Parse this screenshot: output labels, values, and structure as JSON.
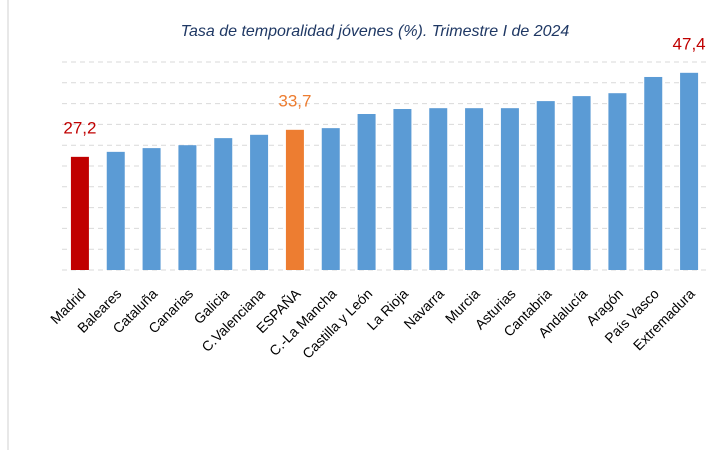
{
  "chart_data": {
    "type": "bar",
    "title": "Tasa de temporalidad jóvenes (%). Trimestre I de 2024",
    "categories": [
      "Madrid",
      "Baleares",
      "Cataluña",
      "Canarias",
      "Galicia",
      "C.Valenciana",
      "ESPAÑA",
      "C.-La Mancha",
      "Castilla y León",
      "La Rioja",
      "Navarra",
      "Murcia",
      "Asturias",
      "Cantabria",
      "Andalucía",
      "Aragón",
      "País Vasco",
      "Extremadura"
    ],
    "values": [
      27.2,
      28.4,
      29.3,
      30.0,
      31.7,
      32.5,
      33.7,
      34.1,
      37.5,
      38.7,
      38.9,
      38.9,
      38.9,
      40.6,
      41.8,
      42.5,
      46.4,
      47.4
    ],
    "value_labels": [
      "27,2",
      null,
      null,
      null,
      null,
      null,
      "33,7",
      null,
      null,
      null,
      null,
      null,
      null,
      null,
      null,
      null,
      null,
      "47,4"
    ],
    "colors": [
      "#c00000",
      "#5b9bd5",
      "#5b9bd5",
      "#5b9bd5",
      "#5b9bd5",
      "#5b9bd5",
      "#ed7d31",
      "#5b9bd5",
      "#5b9bd5",
      "#5b9bd5",
      "#5b9bd5",
      "#5b9bd5",
      "#5b9bd5",
      "#5b9bd5",
      "#5b9bd5",
      "#5b9bd5",
      "#5b9bd5",
      "#5b9bd5"
    ],
    "label_colors": [
      "#c00000",
      null,
      null,
      null,
      null,
      null,
      "#ed7d31",
      null,
      null,
      null,
      null,
      null,
      null,
      null,
      null,
      null,
      null,
      "#c00000"
    ],
    "ylim": [
      0,
      50
    ],
    "yticks": [
      0,
      5,
      10,
      15,
      20,
      25,
      30,
      35,
      40,
      45,
      50
    ],
    "grid": true
  }
}
